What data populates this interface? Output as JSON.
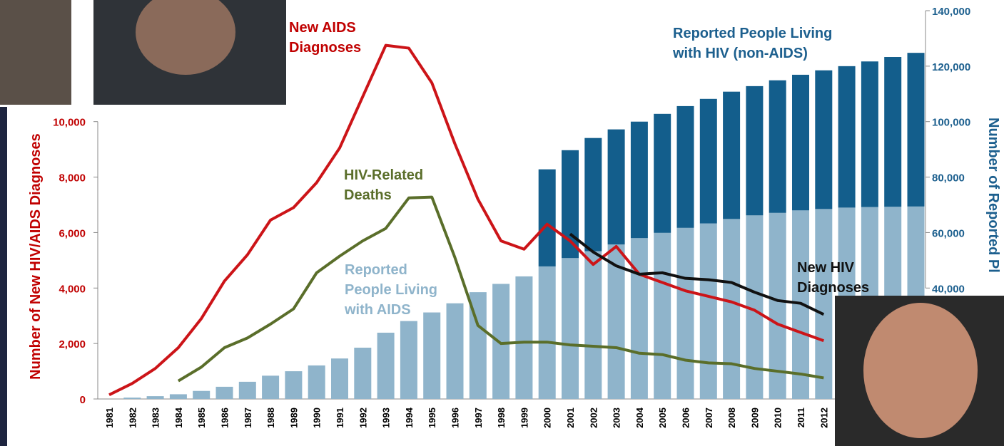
{
  "chart_data": {
    "type": "combo",
    "y_label": "Number of New HIV/AIDS Diagnoses",
    "y2_label": "Number of Reported Pl",
    "categories": [
      "1981",
      "1982",
      "1983",
      "1984",
      "1985",
      "1986",
      "1987",
      "1988",
      "1989",
      "1990",
      "1991",
      "1992",
      "1993",
      "1994",
      "1995",
      "1996",
      "1997",
      "1998",
      "1999",
      "2000",
      "2001",
      "2002",
      "2003",
      "2004",
      "2005",
      "2006",
      "2007",
      "2008",
      "2009",
      "2010",
      "2011",
      "2012",
      null,
      null,
      null,
      null
    ],
    "ylim": [
      0,
      14000
    ],
    "yticks": [
      {
        "value": 0,
        "label": "0"
      },
      {
        "value": 2000,
        "label": "2,000"
      },
      {
        "value": 4000,
        "label": "4,000"
      },
      {
        "value": 6000,
        "label": "6,000"
      },
      {
        "value": 8000,
        "label": "8,000"
      },
      {
        "value": 10000,
        "label": "10,000"
      }
    ],
    "y2lim": [
      0,
      140000
    ],
    "y2ticks": [
      {
        "value": 40000,
        "label": "40,000"
      },
      {
        "value": 60000,
        "label": "60,000"
      },
      {
        "value": 80000,
        "label": "80,000"
      },
      {
        "value": 100000,
        "label": "100,000"
      },
      {
        "value": 120000,
        "label": "120,000"
      },
      {
        "value": 140000,
        "label": "140,000"
      }
    ],
    "series": [
      {
        "name": [
          "Reported",
          "People Living",
          "with AIDS"
        ],
        "type": "bar",
        "axis": "y2",
        "color": "#8fb4cb",
        "values": [
          null,
          500,
          1000,
          1700,
          2900,
          4400,
          6200,
          8400,
          10000,
          12100,
          14600,
          18500,
          23900,
          28100,
          31200,
          34500,
          38500,
          41500,
          44200,
          47800,
          50800,
          53300,
          55700,
          58000,
          59900,
          61700,
          63300,
          64900,
          66200,
          67100,
          68000,
          68500,
          69000,
          69200,
          69300,
          69400
        ]
      },
      {
        "name": [
          "Reported People Living",
          "with HIV (non-AIDS)"
        ],
        "type": "bar",
        "axis": "y2",
        "color": "#135e8c",
        "values": [
          null,
          null,
          null,
          null,
          null,
          null,
          null,
          null,
          null,
          null,
          null,
          null,
          null,
          null,
          null,
          null,
          null,
          null,
          null,
          35000,
          38900,
          40800,
          41500,
          42000,
          42900,
          43900,
          44900,
          45900,
          46600,
          47800,
          48900,
          50000,
          51000,
          52500,
          54000,
          55400
        ]
      },
      {
        "name": [
          "New AIDS",
          "Diagnoses"
        ],
        "type": "line",
        "color": "#cc1418",
        "values": [
          150,
          560,
          1100,
          1850,
          2900,
          4250,
          5200,
          6450,
          6900,
          7800,
          9050,
          10900,
          12750,
          12650,
          11400,
          9200,
          7200,
          5700,
          5400,
          6300,
          5700,
          4850,
          5500,
          4500,
          4200,
          3900,
          3700,
          3500,
          3200,
          2700,
          2400,
          2100,
          null,
          null,
          null,
          null
        ]
      },
      {
        "name": [
          "HIV-Related",
          "Deaths"
        ],
        "type": "line",
        "color": "#5a6e2a",
        "values": [
          null,
          null,
          null,
          650,
          1150,
          1850,
          2200,
          2700,
          3250,
          4550,
          5150,
          5700,
          6150,
          7250,
          7280,
          5100,
          2650,
          2000,
          2050,
          2050,
          1950,
          1900,
          1850,
          1650,
          1600,
          1400,
          1300,
          1270,
          1100,
          1000,
          900,
          760,
          null,
          null,
          null,
          null
        ]
      },
      {
        "name": [
          "New HIV",
          "Diagnoses"
        ],
        "type": "line",
        "color": "#111111",
        "values": [
          null,
          null,
          null,
          null,
          null,
          null,
          null,
          null,
          null,
          null,
          null,
          null,
          null,
          null,
          null,
          null,
          null,
          null,
          null,
          null,
          5950,
          5300,
          4800,
          4500,
          4550,
          4350,
          4300,
          4200,
          3850,
          3550,
          3450,
          3050,
          null,
          null,
          null,
          null
        ]
      }
    ]
  }
}
